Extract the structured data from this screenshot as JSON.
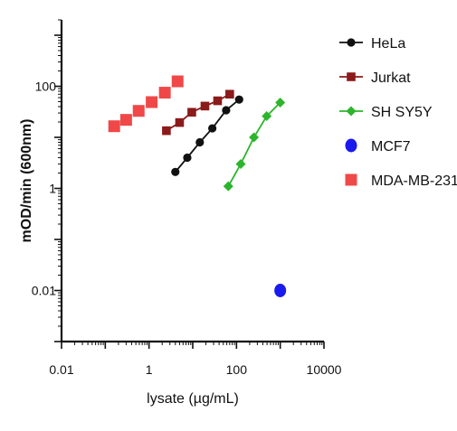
{
  "chart_data": {
    "type": "scatter",
    "xlabel": "lysate (µg/mL)",
    "ylabel": "mOD/min (600nm)",
    "x_scale": "log",
    "y_scale": "log",
    "xlim": [
      0.01,
      10000
    ],
    "ylim": [
      0.001,
      2000
    ],
    "x_ticks": [
      {
        "value": 0.01,
        "label": "0.01"
      },
      {
        "value": 1,
        "label": "1"
      },
      {
        "value": 100,
        "label": "100"
      },
      {
        "value": 10000,
        "label": "10000"
      }
    ],
    "y_ticks": [
      {
        "value": 0.01,
        "label": "0.01"
      },
      {
        "value": 1,
        "label": "1"
      },
      {
        "value": 100,
        "label": "100"
      }
    ],
    "grid": false,
    "legend_position": "right",
    "series": [
      {
        "name": "HeLa",
        "color": "#111111",
        "marker": "circle",
        "connected": true,
        "x": [
          4,
          7.5,
          14.5,
          28,
          58,
          115
        ],
        "y": [
          2.1,
          4.0,
          8.0,
          15.0,
          34,
          55
        ]
      },
      {
        "name": "Jurkat",
        "color": "#8b1a1a",
        "marker": "square",
        "connected": true,
        "x": [
          2.5,
          5,
          9.5,
          19,
          37,
          70
        ],
        "y": [
          13.5,
          19.5,
          31,
          41,
          52,
          70
        ]
      },
      {
        "name": "SH SY5Y",
        "color": "#2cb52c",
        "marker": "diamond",
        "connected": true,
        "x": [
          65,
          125,
          250,
          490,
          1000
        ],
        "y": [
          1.1,
          3.0,
          10,
          26,
          48
        ]
      },
      {
        "name": "MCF7",
        "color": "#1a1aee",
        "marker": "ellipse",
        "connected": false,
        "x": [
          1000
        ],
        "y": [
          0.01
        ]
      },
      {
        "name": "MDA-MB-231",
        "color": "#f04848",
        "marker": "square-large",
        "connected": false,
        "x": [
          0.16,
          0.3,
          0.58,
          1.15,
          2.3,
          4.5
        ],
        "y": [
          16.5,
          22,
          33,
          49,
          75,
          125
        ]
      }
    ]
  }
}
